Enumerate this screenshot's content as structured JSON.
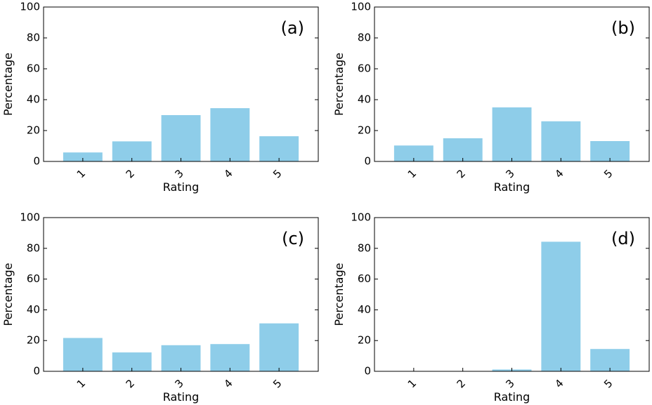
{
  "chart_data": [
    {
      "type": "bar",
      "panel_label": "(a)",
      "categories": [
        "1",
        "2",
        "3",
        "4",
        "5"
      ],
      "values": [
        5.8,
        13.0,
        30.0,
        34.5,
        16.3
      ],
      "xlabel": "Rating",
      "ylabel": "Percentage",
      "ylim": [
        0,
        100
      ],
      "yticks": [
        "0",
        "20",
        "40",
        "60",
        "80",
        "100"
      ],
      "grid": false,
      "bar_color": "#8ecde9"
    },
    {
      "type": "bar",
      "panel_label": "(b)",
      "categories": [
        "1",
        "2",
        "3",
        "4",
        "5"
      ],
      "values": [
        10.3,
        15.0,
        35.0,
        26.0,
        13.2
      ],
      "xlabel": "Rating",
      "ylabel": "Percentage",
      "ylim": [
        0,
        100
      ],
      "yticks": [
        "0",
        "20",
        "40",
        "60",
        "80",
        "100"
      ],
      "grid": false,
      "bar_color": "#8ecde9"
    },
    {
      "type": "bar",
      "panel_label": "(c)",
      "categories": [
        "1",
        "2",
        "3",
        "4",
        "5"
      ],
      "values": [
        21.7,
        12.3,
        17.0,
        17.7,
        31.2
      ],
      "xlabel": "Rating",
      "ylabel": "Percentage",
      "ylim": [
        0,
        100
      ],
      "yticks": [
        "0",
        "20",
        "40",
        "60",
        "80",
        "100"
      ],
      "grid": false,
      "bar_color": "#8ecde9"
    },
    {
      "type": "bar",
      "panel_label": "(d)",
      "categories": [
        "1",
        "2",
        "3",
        "4",
        "5"
      ],
      "values": [
        0,
        0,
        1.2,
        84.3,
        14.5
      ],
      "xlabel": "Rating",
      "ylabel": "Percentage",
      "ylim": [
        0,
        100
      ],
      "yticks": [
        "0",
        "20",
        "40",
        "60",
        "80",
        "100"
      ],
      "grid": false,
      "bar_color": "#8ecde9"
    }
  ]
}
